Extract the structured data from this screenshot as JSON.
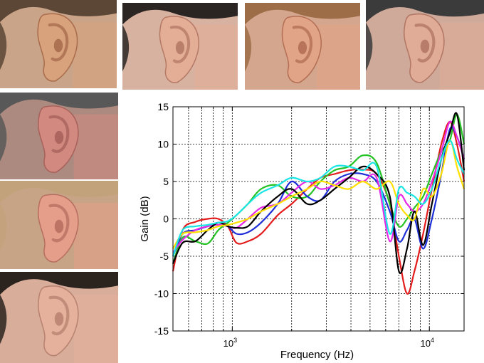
{
  "photos": [
    {
      "name": "ear-photo-1",
      "skin": "#d7a27c",
      "shade": "#a96d4c",
      "hair": "#5c4636",
      "bg": "#c9a489"
    },
    {
      "name": "ear-photo-2",
      "skin": "#e4ad96",
      "shade": "#b57a66",
      "hair": "#2a2423",
      "bg": "#d8b2a1"
    },
    {
      "name": "ear-photo-3",
      "skin": "#e2a486",
      "shade": "#b36f55",
      "hair": "#9c6d46",
      "bg": "#d4a68e"
    },
    {
      "name": "ear-photo-4",
      "skin": "#e0ab97",
      "shade": "#b27865",
      "hair": "#3b3b3b",
      "bg": "#cfa999"
    },
    {
      "name": "ear-photo-5",
      "skin": "#d28a80",
      "shade": "#a8625b",
      "hair": "#585858",
      "bg": "#ad8a80"
    },
    {
      "name": "ear-photo-6",
      "skin": "#e59e8a",
      "shade": "#b86f60",
      "hair": "#c2a27b",
      "bg": "#c6a485"
    },
    {
      "name": "ear-photo-7",
      "skin": "#e5b09c",
      "shade": "#b98372",
      "hair": "#2b231e",
      "bg": "#d8ad9a"
    }
  ],
  "chart_data": {
    "type": "line",
    "title": "",
    "xlabel": "Frequency (Hz)",
    "ylabel": "Gain (dB)",
    "x_scale": "log",
    "xlim": [
      500,
      15000
    ],
    "ylim": [
      -15,
      15
    ],
    "y_ticks": [
      "15",
      "10",
      "5",
      "0",
      "-5",
      "-10",
      "-15"
    ],
    "x_ticks": [
      {
        "base": "10",
        "exp": "3",
        "value": 1000
      },
      {
        "base": "10",
        "exp": "4",
        "value": 10000
      }
    ],
    "grid": "on",
    "legend": "none",
    "series": [
      {
        "color": "#e41c1c",
        "x": [
          500,
          560,
          650,
          750,
          850,
          950,
          1050,
          1200,
          1400,
          1700,
          2000,
          2400,
          2800,
          3300,
          3900,
          4600,
          5400,
          6300,
          7000,
          7700,
          8400,
          9300,
          10300,
          11500,
          12700,
          13800,
          15000
        ],
        "y": [
          -7,
          -1.5,
          -0.4,
          0,
          0,
          -1,
          -3.2,
          -3,
          -2,
          0.5,
          2,
          4,
          5.5,
          6,
          6.5,
          6.6,
          6,
          2,
          -5,
          -10,
          -7,
          -2,
          4,
          10,
          13,
          10,
          5
        ]
      },
      {
        "color": "#24c224",
        "x": [
          500,
          560,
          650,
          750,
          850,
          950,
          1050,
          1200,
          1400,
          1700,
          2000,
          2400,
          2800,
          3300,
          3900,
          4600,
          5400,
          6300,
          7000,
          7700,
          8400,
          9300,
          10300,
          11500,
          12700,
          13800,
          15000
        ],
        "y": [
          -6,
          -2.5,
          -3,
          -3.3,
          -1.5,
          -0.5,
          0.5,
          2,
          4,
          4.5,
          3,
          3,
          5,
          6.5,
          7,
          8.5,
          7.5,
          2,
          -1,
          0,
          1.5,
          3,
          6,
          9,
          10.5,
          14,
          10
        ]
      },
      {
        "color": "#1f2fd8",
        "x": [
          500,
          560,
          650,
          750,
          850,
          950,
          1050,
          1200,
          1400,
          1700,
          2000,
          2400,
          2800,
          3300,
          3900,
          4600,
          5400,
          6300,
          7000,
          7700,
          8400,
          9300,
          10300,
          11500,
          12700,
          13800,
          15000
        ],
        "y": [
          -5,
          -2,
          -1.5,
          -1,
          -0.5,
          -1,
          -2,
          -1.8,
          -0.5,
          2,
          5,
          3,
          2.5,
          5,
          6,
          6,
          5,
          1,
          -3,
          -1.5,
          0,
          -4,
          0,
          6,
          12,
          11,
          8
        ]
      },
      {
        "color": "#e629e6",
        "x": [
          500,
          560,
          650,
          750,
          850,
          950,
          1050,
          1200,
          1400,
          1700,
          2000,
          2400,
          2800,
          3300,
          3900,
          4600,
          5400,
          6300,
          7000,
          7700,
          8400,
          9300,
          10300,
          11500,
          12700,
          13800,
          15000
        ],
        "y": [
          -4.5,
          -2.8,
          -1.5,
          -1,
          -0.8,
          -1,
          -1.2,
          0,
          1.5,
          2,
          3.5,
          5,
          4,
          4.5,
          5.5,
          5,
          5.5,
          -3,
          3,
          2,
          1,
          2,
          5,
          9,
          13,
          11,
          8
        ]
      },
      {
        "color": "#000000",
        "x": [
          500,
          560,
          650,
          750,
          850,
          950,
          1050,
          1200,
          1400,
          1700,
          2000,
          2400,
          2800,
          3300,
          3900,
          4600,
          5400,
          6300,
          7000,
          7700,
          8400,
          9300,
          10300,
          11500,
          12700,
          13800,
          15000
        ],
        "y": [
          -6,
          -3.2,
          -3,
          -1.5,
          -0.5,
          -1,
          -1.2,
          -1,
          1,
          3,
          4,
          2,
          2.5,
          4,
          5.5,
          7,
          6,
          3,
          -7,
          -4,
          1,
          -3.5,
          2,
          8,
          11.5,
          14,
          6.5
        ]
      },
      {
        "color": "#ffe000",
        "x": [
          500,
          560,
          650,
          750,
          850,
          950,
          1050,
          1200,
          1400,
          1700,
          2000,
          2400,
          2800,
          3300,
          3900,
          4600,
          5400,
          6300,
          7000,
          7700,
          8400,
          9300,
          10300,
          11500,
          12700,
          13800,
          15000
        ],
        "y": [
          -4,
          -2,
          -1.8,
          -1.5,
          -1,
          -0.8,
          -0.5,
          0,
          1,
          2,
          3,
          4,
          5,
          4.5,
          4,
          5,
          4,
          5,
          2,
          0.5,
          0,
          4,
          3,
          6,
          10.5,
          7,
          4
        ]
      },
      {
        "color": "#19e5e5",
        "x": [
          500,
          560,
          650,
          750,
          850,
          950,
          1050,
          1200,
          1400,
          1700,
          2000,
          2400,
          2800,
          3300,
          3900,
          4600,
          5400,
          6300,
          7000,
          7700,
          8400,
          9300,
          10300,
          11500,
          12700,
          13800,
          15000
        ],
        "y": [
          -5,
          -1.5,
          -1,
          -0.8,
          -0.5,
          -0.3,
          0.5,
          2,
          3.5,
          4.5,
          5.5,
          5,
          5.5,
          7,
          7,
          6.5,
          7,
          -2,
          4,
          3.5,
          3,
          2,
          4,
          8,
          10.5,
          8,
          6
        ]
      }
    ]
  }
}
